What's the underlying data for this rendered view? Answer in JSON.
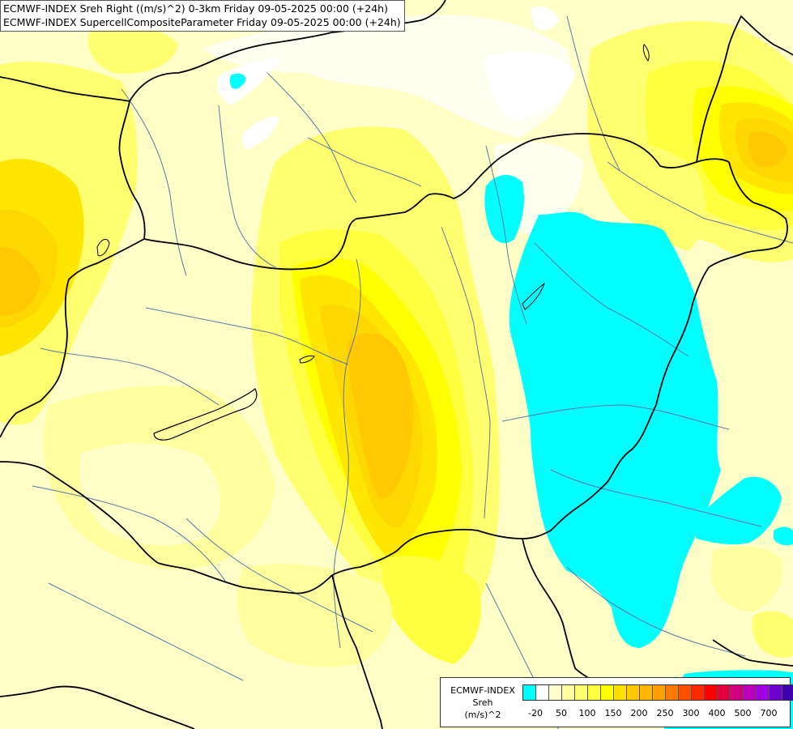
{
  "header": {
    "line1": "ECMWF-INDEX Sreh Right ((m/s)^2) 0-3km Friday 09-05-2025 00:00 (+24h)",
    "line2": "ECMWF-INDEX SupercellCompositeParameter Friday 09-05-2025 00:00 (+24h)"
  },
  "legend": {
    "title_line1": "ECMWF-INDEX",
    "title_line2": "Sreh",
    "title_line3": "(m/s)^2",
    "swatches": [
      "#00ffff",
      "#ffffff",
      "#ffffd0",
      "#ffffa0",
      "#ffff70",
      "#ffff40",
      "#ffff00",
      "#ffe000",
      "#ffc800",
      "#ffb400",
      "#ffa000",
      "#ff7800",
      "#ff5000",
      "#ff2800",
      "#ff0000",
      "#e00040",
      "#d00080",
      "#c000c0",
      "#a000e0",
      "#7000d0",
      "#4000b0",
      "#000080"
    ],
    "tick_labels": [
      "-20",
      "50",
      "100",
      "150",
      "200",
      "250",
      "300",
      "400",
      "500",
      "700"
    ]
  },
  "colors": {
    "base": "#ffffc8",
    "pale": "#fffff0",
    "light": "#ffffa0",
    "yellow1": "#ffff70",
    "yellow2": "#ffff40",
    "yellow3": "#ffff00",
    "gold1": "#ffe600",
    "gold2": "#ffd700",
    "gold3": "#ffc800",
    "orange1": "#ffb400",
    "cyan": "#00ffff",
    "border": "#000000",
    "river": "#5a78a8"
  }
}
